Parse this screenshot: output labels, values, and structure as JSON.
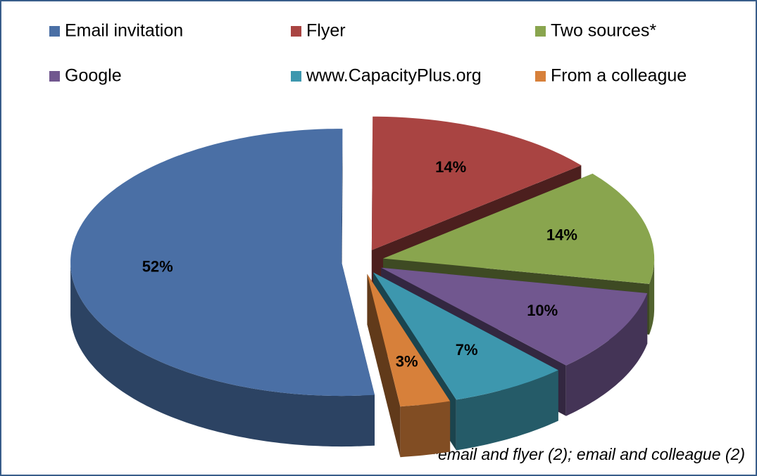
{
  "chart_data": {
    "type": "pie",
    "categories": [
      "Email invitation",
      "Flyer",
      "Two sources*",
      "Google",
      "www.CapacityPlus.org",
      "From a colleague"
    ],
    "values": [
      52,
      14,
      14,
      10,
      7,
      3
    ],
    "value_labels": [
      "52%",
      "14%",
      "14%",
      "10%",
      "7%",
      "3%"
    ],
    "colors": [
      "#4a6fa5",
      "#a94442",
      "#89a54e",
      "#71578f",
      "#3d97ae",
      "#d7803a"
    ],
    "annotation": "*email and flyer (2); email and colleague (2)",
    "legend": "top"
  }
}
